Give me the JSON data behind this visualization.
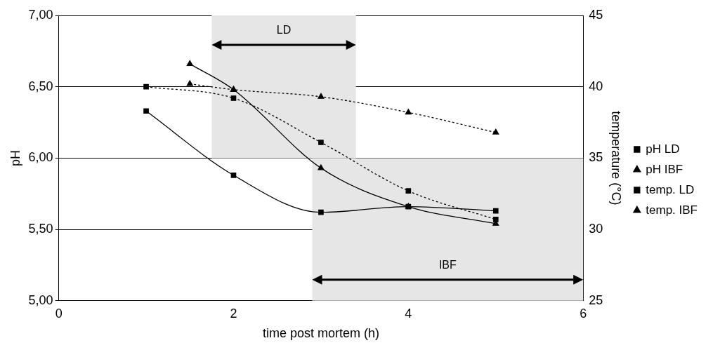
{
  "chart_data": {
    "type": "line",
    "xlabel": "time post mortem (h)",
    "ylabel": "pH",
    "y2label": "temperature (°C)",
    "xlim": [
      0,
      6
    ],
    "xticks": [
      0,
      2,
      4,
      6
    ],
    "ylim": [
      5,
      7
    ],
    "yticks": [
      {
        "value": 5,
        "label": "5,00"
      },
      {
        "value": 5.5,
        "label": "5,50"
      },
      {
        "value": 6,
        "label": "6,00"
      },
      {
        "value": 6.5,
        "label": "6,50"
      },
      {
        "value": 7,
        "label": "7,00"
      }
    ],
    "y2lim": [
      25,
      45
    ],
    "y2ticks": [
      25,
      30,
      35,
      40,
      45
    ],
    "grid": "y",
    "legend": "right",
    "series": [
      {
        "name": "pH LD",
        "color": "#000000",
        "marker": "square",
        "line_style": "solid",
        "x": [
          1,
          2,
          3,
          4,
          5
        ],
        "values": [
          6.33,
          5.88,
          5.62,
          5.66,
          5.63
        ]
      },
      {
        "name": "pH IBF",
        "color": "#000000",
        "marker": "triangle",
        "line_style": "solid",
        "x": [
          1.5,
          2,
          3,
          4,
          5
        ],
        "values": [
          6.66,
          6.48,
          5.93,
          5.66,
          5.54
        ]
      },
      {
        "name": "temp. LD",
        "color": "#000000",
        "marker": "square",
        "line_style": "dotted",
        "axis": "y2",
        "x": [
          1,
          2,
          3,
          4,
          5
        ],
        "values": [
          40.0,
          39.2,
          36.1,
          32.7,
          30.7
        ]
      },
      {
        "name": "temp. IBF",
        "color": "#000000",
        "marker": "triangle",
        "line_style": "dotted",
        "axis": "y2",
        "x": [
          1.5,
          2,
          3,
          4,
          5
        ],
        "values": [
          40.2,
          39.8,
          39.3,
          38.2,
          36.8
        ]
      }
    ],
    "bands": [
      {
        "axis": "x",
        "from": 1.75,
        "to": 3.4,
        "label": "LD",
        "color": "#e6e6e6"
      },
      {
        "axis": "x",
        "from": 2.9,
        "to": 6,
        "label": "IBF",
        "color": "#e6e6e6"
      }
    ]
  }
}
